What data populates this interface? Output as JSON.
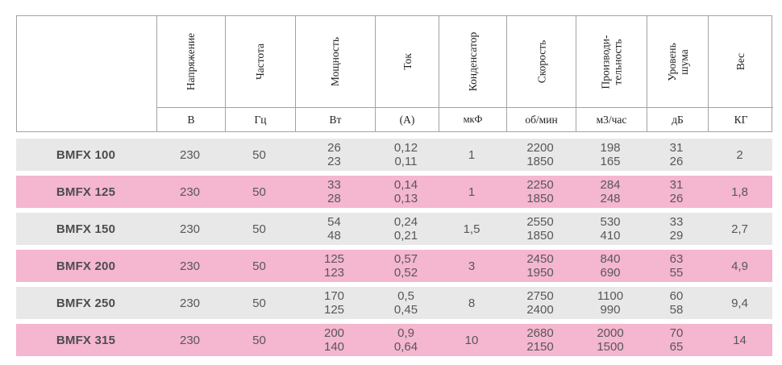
{
  "colors": {
    "border": "#a3a3a3",
    "row_gray": "#e8e8e8",
    "row_pink": "#f5b6cf",
    "data_text": "#57575a",
    "model_text": "#4c4c4f",
    "header_text": "#222222"
  },
  "table": {
    "columns": [
      {
        "label": "Напряжение",
        "unit": "В"
      },
      {
        "label": "Частота",
        "unit": "Гц"
      },
      {
        "label": "Мощность",
        "unit": "Вт"
      },
      {
        "label": "Ток",
        "unit": "(А)"
      },
      {
        "label": "Конденсатор",
        "unit": "мкФ"
      },
      {
        "label": "Скорость",
        "unit": "об/мин"
      },
      {
        "label": "Производи-\nтельность",
        "unit": "м3/час"
      },
      {
        "label": "Уровень\nшума",
        "unit": "дБ"
      },
      {
        "label": "Вес",
        "unit": "КГ"
      }
    ],
    "rows": [
      {
        "model": "BMFX 100",
        "values": [
          "230",
          "50",
          "26\n23",
          "0,12\n0,11",
          "1",
          "2200\n1850",
          "198\n165",
          "31\n26",
          "2"
        ]
      },
      {
        "model": "BMFX 125",
        "values": [
          "230",
          "50",
          "33\n28",
          "0,14\n0,13",
          "1",
          "2250\n1850",
          "284\n248",
          "31\n26",
          "1,8"
        ]
      },
      {
        "model": "BMFX 150",
        "values": [
          "230",
          "50",
          "54\n48",
          "0,24\n0,21",
          "1,5",
          "2550\n1850",
          "530\n410",
          "33\n29",
          "2,7"
        ]
      },
      {
        "model": "BMFX 200",
        "values": [
          "230",
          "50",
          "125\n123",
          "0,57\n0,52",
          "3",
          "2450\n1950",
          "840\n690",
          "63\n55",
          "4,9"
        ]
      },
      {
        "model": "BMFX 250",
        "values": [
          "230",
          "50",
          "170\n125",
          "0,5\n0,45",
          "8",
          "2750\n2400",
          "1100\n990",
          "60\n58",
          "9,4"
        ]
      },
      {
        "model": "BMFX 315",
        "values": [
          "230",
          "50",
          "200\n140",
          "0,9\n0,64",
          "10",
          "2680\n2150",
          "2000\n1500",
          "70\n65",
          "14"
        ]
      }
    ]
  }
}
